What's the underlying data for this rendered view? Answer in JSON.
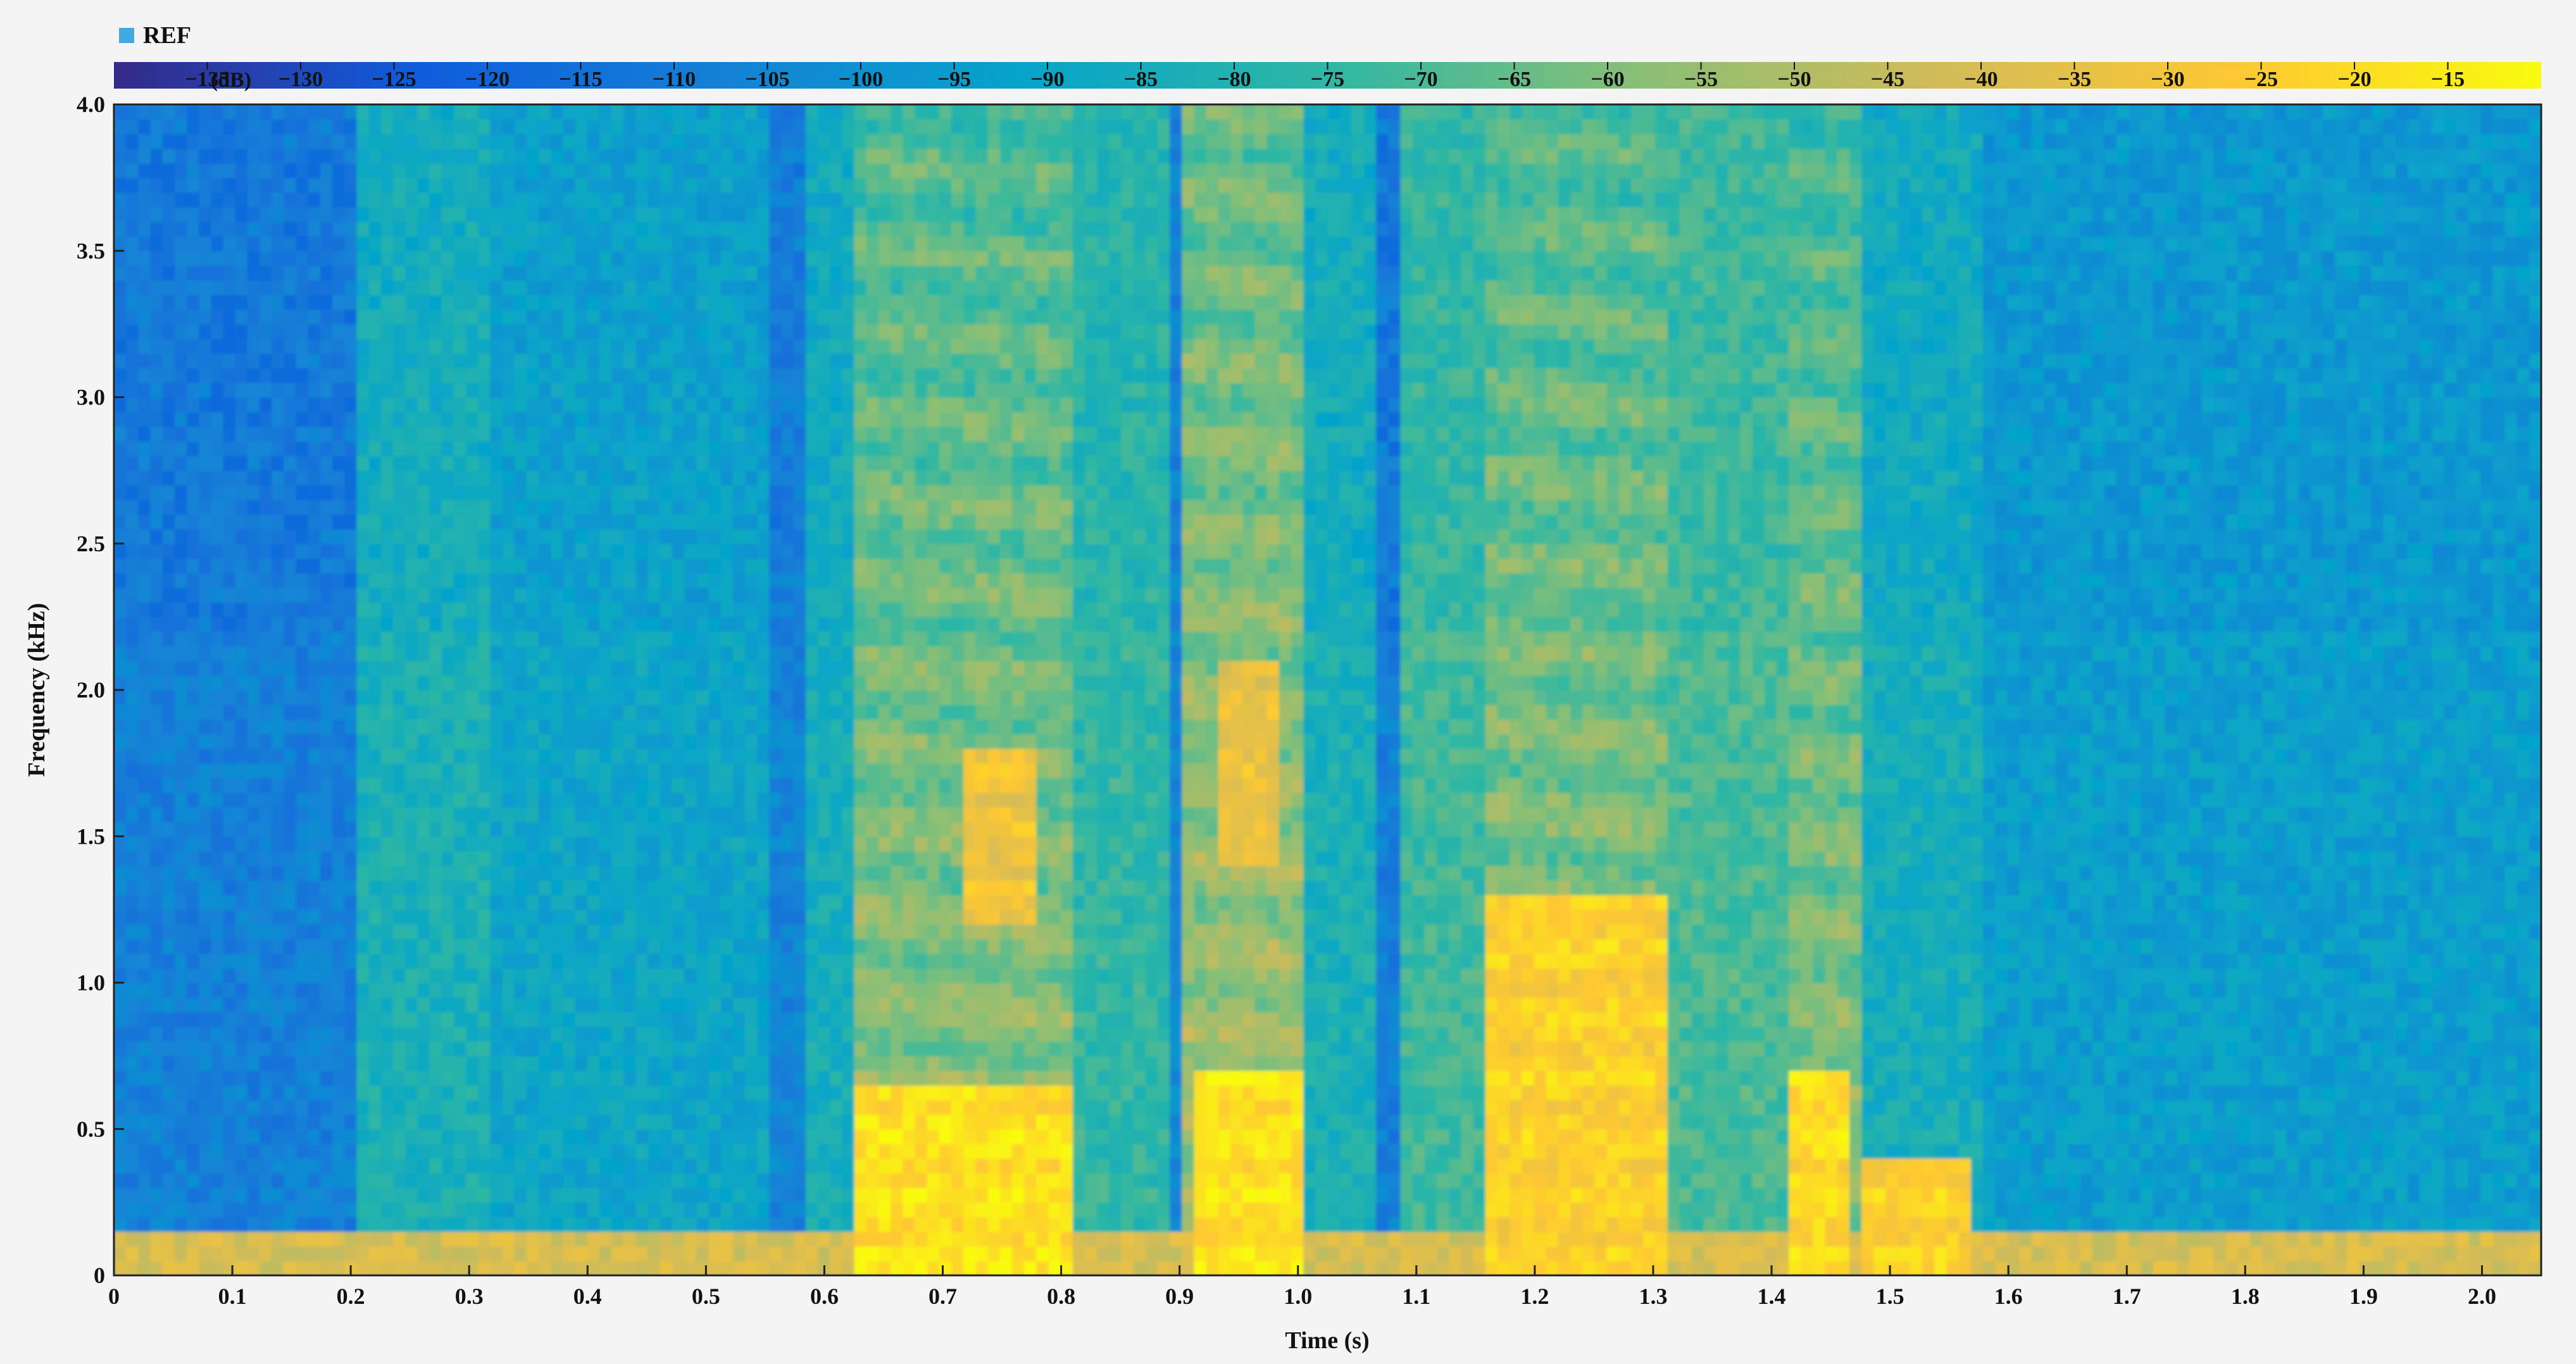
{
  "chart_data": {
    "type": "heatmap",
    "title": "",
    "legend": {
      "marker_color": "#41a9df",
      "label": "REF",
      "placement": "top-left"
    },
    "xlabel": "Time (s)",
    "ylabel": "Frequency (kHz)",
    "xlim": [
      0,
      2.05
    ],
    "ylim": [
      0,
      4.0
    ],
    "xticks": [
      0,
      0.1,
      0.2,
      0.3,
      0.4,
      0.5,
      0.6,
      0.7,
      0.8,
      0.9,
      1.0,
      1.1,
      1.2,
      1.3,
      1.4,
      1.5,
      1.6,
      1.7,
      1.8,
      1.9,
      2.0
    ],
    "xtick_labels": [
      "0",
      "0.1",
      "0.2",
      "0.3",
      "0.4",
      "0.5",
      "0.6",
      "0.7",
      "0.8",
      "0.9",
      "1.0",
      "1.1",
      "1.2",
      "1.3",
      "1.4",
      "1.5",
      "1.6",
      "1.7",
      "1.8",
      "1.9",
      "2.0"
    ],
    "yticks": [
      0,
      0.5,
      1.0,
      1.5,
      2.0,
      2.5,
      3.0,
      3.5,
      4.0
    ],
    "ytick_labels": [
      "0",
      "0.5",
      "1.0",
      "1.5",
      "2.0",
      "2.5",
      "3.0",
      "3.5",
      "4.0"
    ],
    "colorbar": {
      "unit_label": "(dB)",
      "range": [
        -140,
        -10
      ],
      "tick_values": [
        -135,
        -130,
        -125,
        -120,
        -115,
        -110,
        -105,
        -100,
        -95,
        -90,
        -85,
        -80,
        -75,
        -70,
        -65,
        -60,
        -55,
        -50,
        -45,
        -40,
        -35,
        -30,
        -25,
        -20,
        -15
      ],
      "tick_labels": [
        "−135",
        "−130",
        "−125",
        "−120",
        "−115",
        "−110",
        "−105",
        "−100",
        "−95",
        "−90",
        "−85",
        "−80",
        "−75",
        "−70",
        "−65",
        "−60",
        "−55",
        "−50",
        "−45",
        "−40",
        "−35",
        "−30",
        "−25",
        "−20",
        "−15"
      ],
      "colormap": [
        "#352a87",
        "#0f5cdd",
        "#1481d6",
        "#06a4ca",
        "#2eb7a4",
        "#87bf77",
        "#d1bb59",
        "#fec832",
        "#f9fb0e"
      ]
    },
    "time_segments": [
      {
        "t0": 0.0,
        "t1": 0.2,
        "db": -108
      },
      {
        "t0": 0.2,
        "t1": 0.21,
        "db": -70
      },
      {
        "t0": 0.21,
        "t1": 0.32,
        "db": -82
      },
      {
        "t0": 0.32,
        "t1": 0.55,
        "db": -90
      },
      {
        "t0": 0.55,
        "t1": 0.58,
        "db": -106
      },
      {
        "t0": 0.58,
        "t1": 0.63,
        "db": -84
      },
      {
        "t0": 0.63,
        "t1": 0.81,
        "db": -56
      },
      {
        "t0": 0.81,
        "t1": 0.89,
        "db": -75
      },
      {
        "t0": 0.89,
        "t1": 0.9,
        "db": -104
      },
      {
        "t0": 0.9,
        "t1": 1.0,
        "db": -52
      },
      {
        "t0": 1.0,
        "t1": 1.07,
        "db": -82
      },
      {
        "t0": 1.07,
        "t1": 1.09,
        "db": -108
      },
      {
        "t0": 1.09,
        "t1": 1.16,
        "db": -72
      },
      {
        "t0": 1.16,
        "t1": 1.31,
        "db": -56
      },
      {
        "t0": 1.31,
        "t1": 1.41,
        "db": -70
      },
      {
        "t0": 1.41,
        "t1": 1.48,
        "db": -57
      },
      {
        "t0": 1.48,
        "t1": 1.58,
        "db": -84
      },
      {
        "t0": 1.58,
        "t1": 2.05,
        "db": -94
      }
    ],
    "bright_regions": [
      {
        "t0": 0.63,
        "t1": 0.81,
        "f0": 0.0,
        "f1": 0.65,
        "db": -18
      },
      {
        "t0": 0.91,
        "t1": 1.0,
        "f0": 0.0,
        "f1": 0.7,
        "db": -18
      },
      {
        "t0": 1.16,
        "t1": 1.31,
        "f0": 0.0,
        "f1": 1.3,
        "db": -24
      },
      {
        "t0": 1.41,
        "t1": 1.47,
        "f0": 0.0,
        "f1": 0.7,
        "db": -20
      },
      {
        "t0": 1.48,
        "t1": 1.57,
        "f0": 0.0,
        "f1": 0.4,
        "db": -24
      },
      {
        "t0": 0.72,
        "t1": 0.78,
        "f0": 1.2,
        "f1": 1.8,
        "db": -32
      },
      {
        "t0": 0.93,
        "t1": 0.98,
        "f0": 1.4,
        "f1": 2.1,
        "db": -34
      }
    ],
    "low_band": {
      "f0": 0.0,
      "f1": 0.15,
      "db": -40
    }
  }
}
